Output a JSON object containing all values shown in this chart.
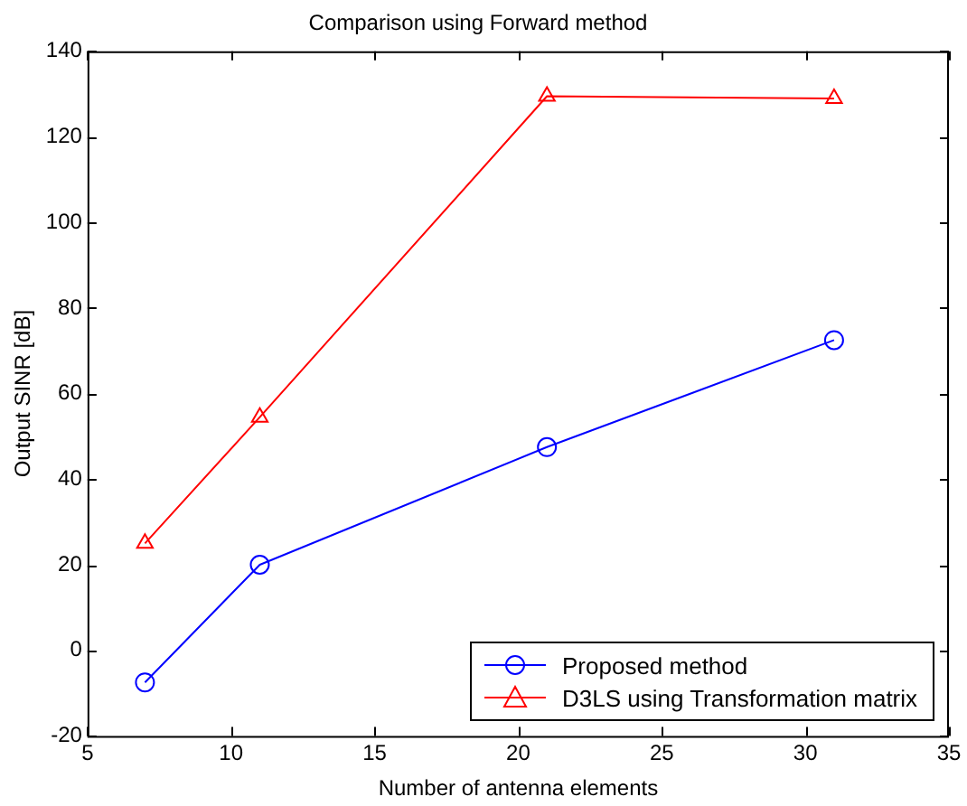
{
  "chart_data": {
    "type": "line",
    "title": "Comparison using Forward method",
    "xlabel": "Number of antenna elements",
    "ylabel": "Output SINR [dB]",
    "x": [
      7,
      11,
      21,
      31
    ],
    "series": [
      {
        "name": "Proposed method",
        "color": "#0000ff",
        "marker": "circle",
        "values": [
          -7.5,
          20,
          47.5,
          72.5
        ]
      },
      {
        "name": "D3LS using Transformation matrix",
        "color": "#ff0000",
        "marker": "triangle",
        "values": [
          25,
          54.5,
          129.5,
          129
        ]
      }
    ],
    "xlim": [
      5,
      35
    ],
    "xticks": [
      5,
      10,
      15,
      20,
      25,
      30,
      35
    ],
    "ylim": [
      -20,
      140
    ],
    "yticks": [
      -20,
      0,
      20,
      40,
      60,
      80,
      100,
      120,
      140
    ],
    "grid": false,
    "legend": "bottom right"
  }
}
